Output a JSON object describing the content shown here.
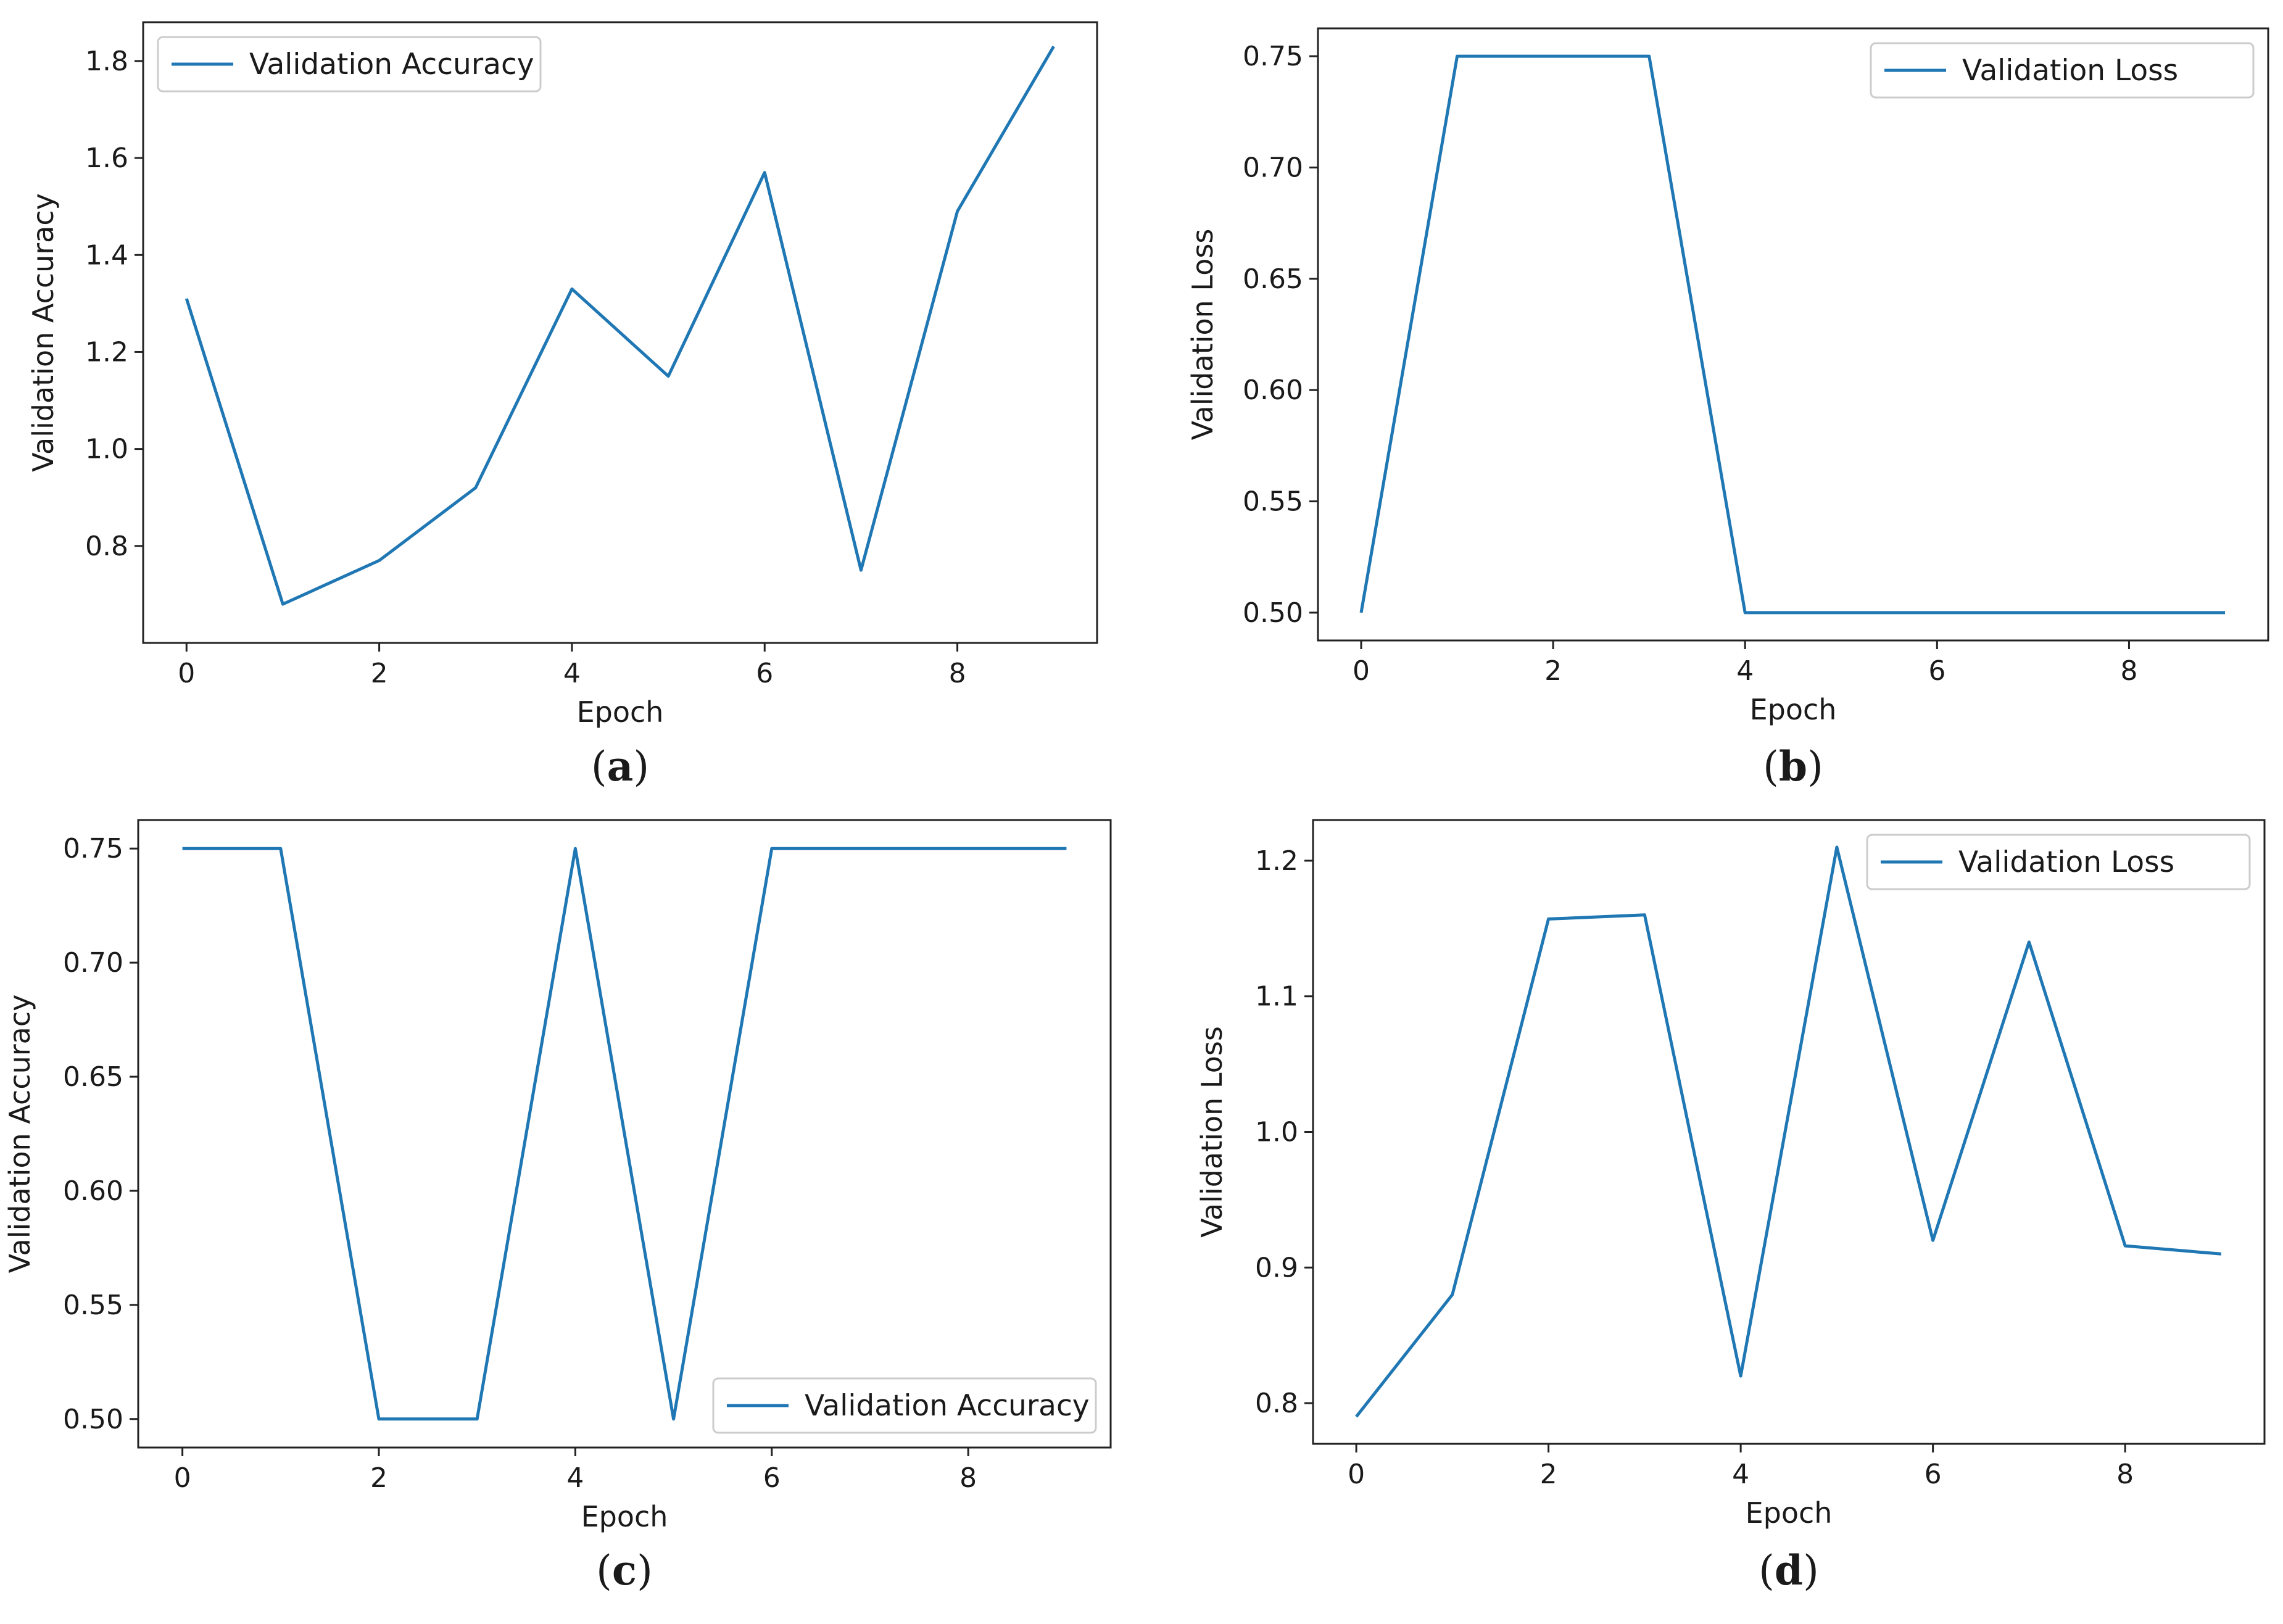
{
  "colors": {
    "line": "#1f77b4",
    "axes": "#222222",
    "legend_border": "#cccccc",
    "background": "#ffffff"
  },
  "chart_data": [
    {
      "id": "a",
      "type": "line",
      "caption": "a",
      "xlabel": "Epoch",
      "ylabel": "Validation Accuracy",
      "xlim": [
        -0.45,
        9.45
      ],
      "ylim": [
        0.6,
        1.88
      ],
      "xticks": [
        0,
        2,
        4,
        6,
        8
      ],
      "yticks": [
        0.8,
        1.0,
        1.2,
        1.4,
        1.6,
        1.8
      ],
      "ytick_labels": [
        "0.8",
        "1.0",
        "1.2",
        "1.4",
        "1.6",
        "1.8"
      ],
      "legend_position": "top-left",
      "series": [
        {
          "name": "Validation Accuracy",
          "x": [
            0,
            1,
            2,
            3,
            4,
            5,
            6,
            7,
            8,
            9
          ],
          "values": [
            1.31,
            0.68,
            0.77,
            0.92,
            1.33,
            1.15,
            1.57,
            0.75,
            1.49,
            1.83
          ]
        }
      ]
    },
    {
      "id": "b",
      "type": "line",
      "caption": "b",
      "xlabel": "Epoch",
      "ylabel": "Validation Loss",
      "xlim": [
        -0.45,
        9.45
      ],
      "ylim": [
        0.4875,
        0.7625
      ],
      "xticks": [
        0,
        2,
        4,
        6,
        8
      ],
      "yticks": [
        0.5,
        0.55,
        0.6,
        0.65,
        0.7,
        0.75
      ],
      "ytick_labels": [
        "0.50",
        "0.55",
        "0.60",
        "0.65",
        "0.70",
        "0.75"
      ],
      "legend_position": "top-right",
      "series": [
        {
          "name": "Validation Loss",
          "x": [
            0,
            1,
            2,
            3,
            4,
            5,
            6,
            7,
            8,
            9
          ],
          "values": [
            0.5,
            0.75,
            0.75,
            0.75,
            0.5,
            0.5,
            0.5,
            0.5,
            0.5,
            0.5
          ]
        }
      ]
    },
    {
      "id": "c",
      "type": "line",
      "caption": "c",
      "xlabel": "Epoch",
      "ylabel": "Validation Accuracy",
      "xlim": [
        -0.45,
        9.45
      ],
      "ylim": [
        0.4875,
        0.7625
      ],
      "xticks": [
        0,
        2,
        4,
        6,
        8
      ],
      "yticks": [
        0.5,
        0.55,
        0.6,
        0.65,
        0.7,
        0.75
      ],
      "ytick_labels": [
        "0.50",
        "0.55",
        "0.60",
        "0.65",
        "0.70",
        "0.75"
      ],
      "legend_position": "lower-right",
      "series": [
        {
          "name": "Validation Accuracy",
          "x": [
            0,
            1,
            2,
            3,
            4,
            5,
            6,
            7,
            8,
            9
          ],
          "values": [
            0.75,
            0.75,
            0.5,
            0.5,
            0.75,
            0.5,
            0.75,
            0.75,
            0.75,
            0.75
          ]
        }
      ]
    },
    {
      "id": "d",
      "type": "line",
      "caption": "d",
      "xlabel": "Epoch",
      "ylabel": "Validation Loss",
      "xlim": [
        -0.45,
        9.45
      ],
      "ylim": [
        0.77,
        1.23
      ],
      "xticks": [
        0,
        2,
        4,
        6,
        8
      ],
      "yticks": [
        0.8,
        0.9,
        1.0,
        1.1,
        1.2
      ],
      "ytick_labels": [
        "0.8",
        "0.9",
        "1.0",
        "1.1",
        "1.2"
      ],
      "legend_position": "top-right",
      "series": [
        {
          "name": "Validation Loss",
          "x": [
            0,
            1,
            2,
            3,
            4,
            5,
            6,
            7,
            8,
            9
          ],
          "values": [
            0.79,
            0.88,
            1.157,
            1.16,
            0.82,
            1.21,
            0.92,
            1.14,
            0.916,
            0.91
          ]
        }
      ]
    }
  ]
}
